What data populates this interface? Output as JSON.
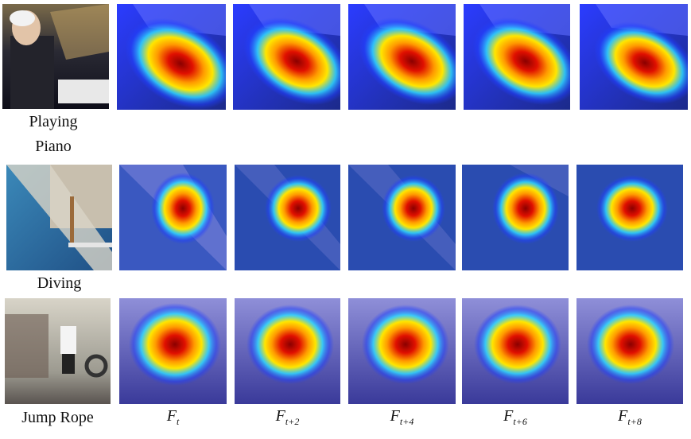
{
  "rows": [
    {
      "label_lines": [
        "Playing",
        "Piano"
      ]
    },
    {
      "label_lines": [
        "Diving"
      ]
    },
    {
      "label_lines": [
        "Jump Rope"
      ]
    }
  ],
  "columns": [
    {
      "base": "F",
      "sub": "t"
    },
    {
      "base": "F",
      "sub": "t+2"
    },
    {
      "base": "F",
      "sub": "t+4"
    },
    {
      "base": "F",
      "sub": "t+6"
    },
    {
      "base": "F",
      "sub": "t+8"
    }
  ],
  "colors": {
    "heat_red": "#d00000",
    "heat_yellow": "#ffe000",
    "heat_cyan": "#30c8ff",
    "heat_blue": "#2a3cff",
    "piano_bg": "#1c2a52",
    "pool_water": "#2d6ea3",
    "gym_wall": "#8b88c8"
  }
}
